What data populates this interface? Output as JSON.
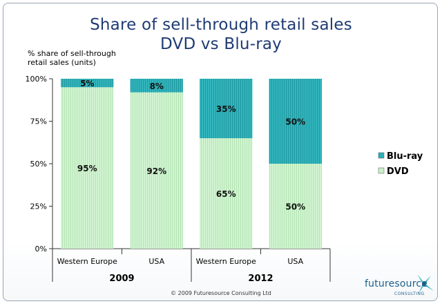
{
  "chart_data": {
    "type": "bar",
    "stacked": true,
    "title": "Share of sell-through retail sales",
    "subtitle": "DVD vs Blu-ray",
    "ylabel": "% share of sell-through retail sales (units)",
    "ylim": [
      0,
      100
    ],
    "yticks": [
      "0%",
      "25%",
      "50%",
      "75%",
      "100%"
    ],
    "categories": [
      "Western Europe",
      "USA",
      "Western Europe",
      "USA"
    ],
    "groups": [
      {
        "label": "2009",
        "categories": [
          0,
          1
        ]
      },
      {
        "label": "2012",
        "categories": [
          2,
          3
        ]
      }
    ],
    "series": [
      {
        "name": "DVD",
        "values": [
          95,
          92,
          65,
          50
        ],
        "labels": [
          "95%",
          "92%",
          "65%",
          "50%"
        ],
        "color": "#c8f0c8"
      },
      {
        "name": "Blu-ray",
        "values": [
          5,
          8,
          35,
          50
        ],
        "labels": [
          "5%",
          "8%",
          "35%",
          "50%"
        ],
        "color": "#2ab0b8"
      }
    ],
    "legend_position": "right",
    "grid": false
  },
  "footer": {
    "copyright": "© 2009 Futuresource Consulting Ltd",
    "logo_text": "futuresource",
    "logo_sub": "CONSULTING"
  }
}
